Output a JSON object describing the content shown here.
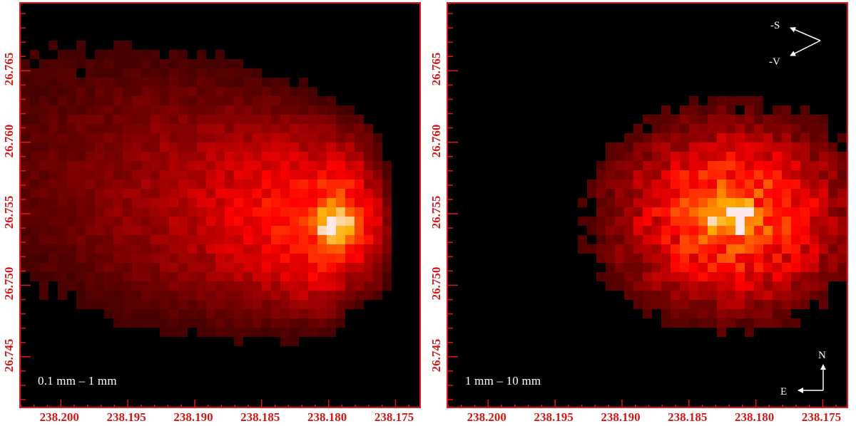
{
  "colors": {
    "axis": "#e31818",
    "tick_label": "#d01a1a",
    "background": "#000000",
    "annotation": "#ffffff"
  },
  "colormap": "hot (black-red-orange-white)",
  "chart_data": [
    {
      "type": "heatmap",
      "panel_label": "0.1 mm – 1 mm",
      "xlim": [
        238.203,
        238.173
      ],
      "ylim": [
        26.7413,
        26.7697
      ],
      "x_ticks": [
        "238.200",
        "238.195",
        "238.190",
        "238.185",
        "238.180",
        "238.175"
      ],
      "y_ticks": [
        "26.745",
        "26.750",
        "26.755",
        "26.760",
        "26.765"
      ],
      "x_tick_values": [
        238.2,
        238.195,
        238.19,
        238.185,
        238.18,
        238.175
      ],
      "y_tick_values": [
        26.745,
        26.75,
        26.755,
        26.76,
        26.765
      ],
      "nucleus_peak": {
        "ra": 238.1795,
        "dec": 26.7542
      },
      "description_values": {
        "tail_extends_to_ra": 238.203,
        "tail_dec_range": [
          26.746,
          26.764
        ]
      }
    },
    {
      "type": "heatmap",
      "panel_label": "1 mm – 10 mm",
      "xlim": [
        238.203,
        238.173
      ],
      "ylim": [
        26.7413,
        26.7697
      ],
      "x_ticks": [
        "238.200",
        "238.195",
        "238.190",
        "238.185",
        "238.180",
        "238.175"
      ],
      "y_ticks": [
        "26.745",
        "26.750",
        "26.755",
        "26.760",
        "26.765"
      ],
      "x_tick_values": [
        238.2,
        238.195,
        238.19,
        238.185,
        238.18,
        238.175
      ],
      "y_tick_values": [
        26.745,
        26.75,
        26.755,
        26.76,
        26.765
      ],
      "nucleus_peak": {
        "ra": 238.1818,
        "dec": 26.7548
      },
      "compass": {
        "north": "N",
        "east": "E",
        "sun": "-S",
        "velocity": "-V"
      }
    }
  ]
}
